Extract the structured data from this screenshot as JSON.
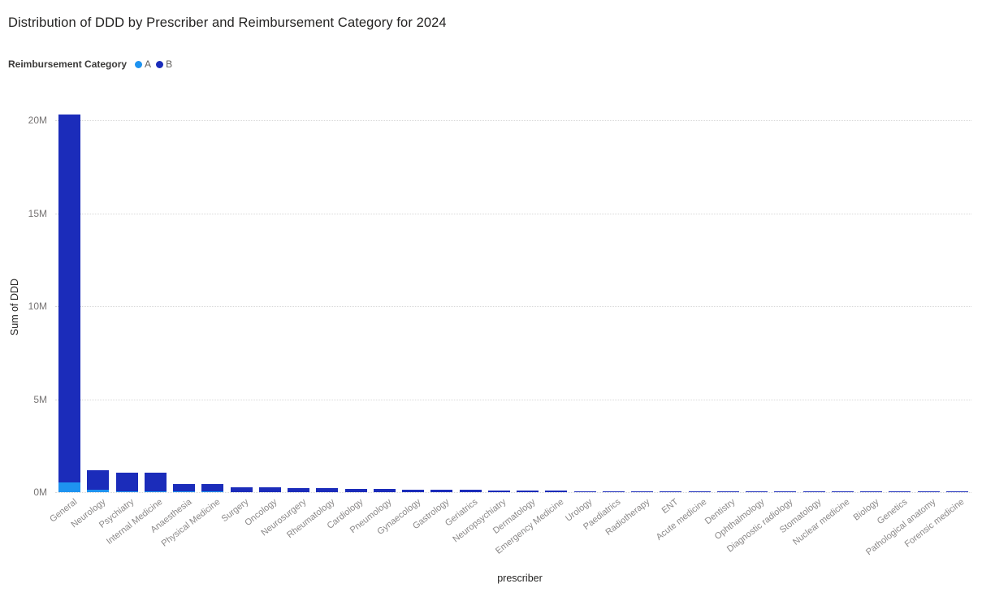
{
  "title": "Distribution of DDD by Prescriber and Reimbursement Category for 2024",
  "legend": {
    "title": "Reimbursement Category",
    "items": [
      {
        "label": "A",
        "color": "#1e93f0"
      },
      {
        "label": "B",
        "color": "#1b2cba"
      }
    ]
  },
  "axes": {
    "y_title": "Sum of DDD",
    "x_title": "prescriber"
  },
  "chart_data": {
    "type": "bar",
    "stacked": true,
    "title": "Distribution of DDD by Prescriber and Reimbursement Category for 2024",
    "xlabel": "prescriber",
    "ylabel": "Sum of DDD",
    "values_unit": "millions of DDD",
    "ylim": [
      0,
      20500000
    ],
    "grid": "horizontal dotted",
    "legend_position": "top-left",
    "y_ticks": [
      {
        "value": 0,
        "label": "0M"
      },
      {
        "value": 5,
        "label": "5M"
      },
      {
        "value": 10,
        "label": "10M"
      },
      {
        "value": 15,
        "label": "15M"
      },
      {
        "value": 20,
        "label": "20M"
      }
    ],
    "categories": [
      "General",
      "Neurology",
      "Psychiatry",
      "Internal Medicine",
      "Anaesthesia",
      "Physical Medicine",
      "Surgery",
      "Oncology",
      "Neurosurgery",
      "Rheumatology",
      "Cardiology",
      "Pneumology",
      "Gynaecology",
      "Gastrology",
      "Geriatrics",
      "Neuropsychiatry",
      "Dermatology",
      "Emergency Medicine",
      "Urology",
      "Paediatrics",
      "Radiotherapy",
      "ENT",
      "Acute medicine",
      "Dentistry",
      "Ophthalmology",
      "Diagnostic radiology",
      "Stomatology",
      "Nuclear medicine",
      "Biology",
      "Genetics",
      "Pathological anatomy",
      "Forensic medicine"
    ],
    "series": [
      {
        "name": "A",
        "color": "#1e93f0",
        "values": [
          0.52,
          0.13,
          0.02,
          0.02,
          0.01,
          0.01,
          0,
          0,
          0,
          0,
          0,
          0,
          0,
          0,
          0,
          0,
          0,
          0,
          0,
          0,
          0,
          0,
          0,
          0,
          0,
          0,
          0,
          0,
          0,
          0,
          0,
          0
        ]
      },
      {
        "name": "B",
        "color": "#1b2cba",
        "values": [
          19.78,
          1.04,
          1.03,
          1.02,
          0.43,
          0.4,
          0.28,
          0.25,
          0.23,
          0.2,
          0.18,
          0.16,
          0.14,
          0.12,
          0.11,
          0.09,
          0.08,
          0.07,
          0.06,
          0.055,
          0.05,
          0.045,
          0.04,
          0.035,
          0.03,
          0.025,
          0.02,
          0.015,
          0.01,
          0.008,
          0.005,
          0.003
        ]
      }
    ]
  }
}
